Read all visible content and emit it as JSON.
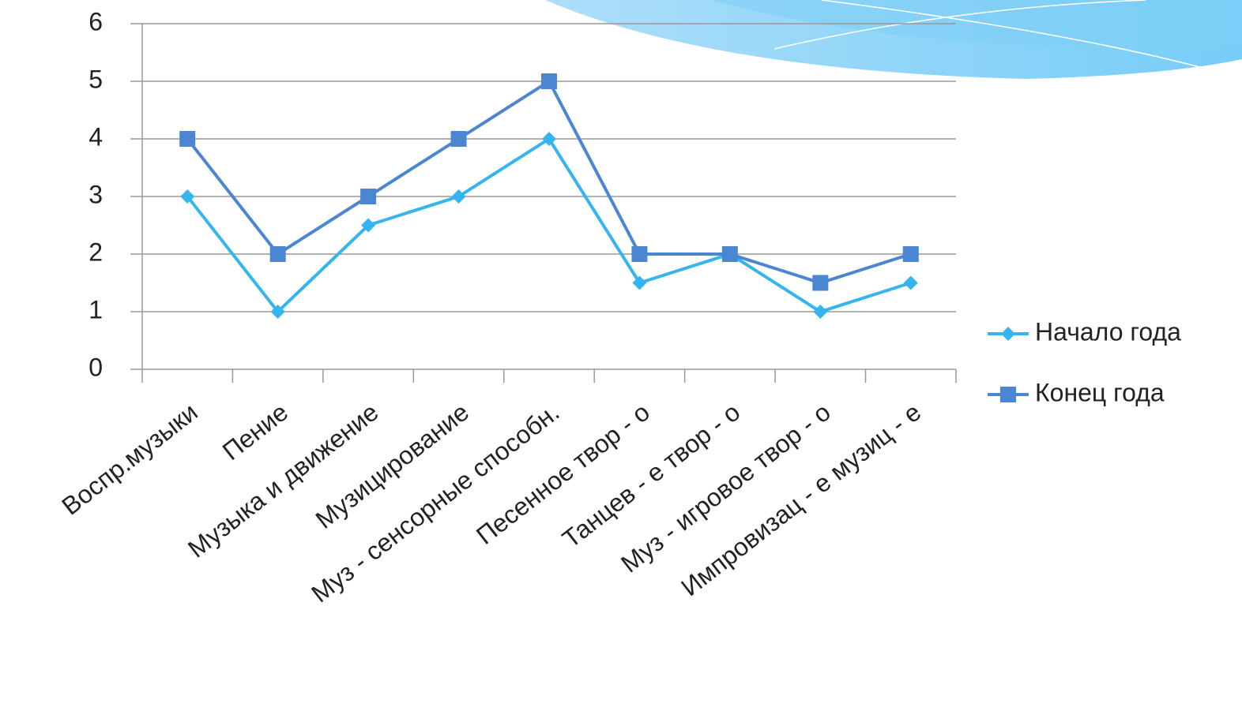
{
  "chart_data": {
    "type": "line",
    "categories": [
      "Воспр.музыки",
      "Пение",
      "Музыка и движение",
      "Музицирование",
      "Муз - сенсорные способн.",
      "Песенное твор - о",
      "Танцев - е твор - о",
      "Муз - игровое твор - о",
      "Импровизац - е музиц - е"
    ],
    "series": [
      {
        "name": "Начало года",
        "color": "#35b5f0",
        "marker": "diamond",
        "values": [
          3,
          1,
          2.5,
          3,
          4,
          1.5,
          2,
          1,
          1.5
        ]
      },
      {
        "name": "Конец года",
        "color": "#4a86d2",
        "marker": "square",
        "values": [
          4,
          2,
          3,
          4,
          5,
          2,
          2,
          1.5,
          2
        ]
      }
    ],
    "ylim": [
      0,
      6
    ],
    "yticks": [
      0,
      1,
      2,
      3,
      4,
      5,
      6
    ],
    "grid": true,
    "legend": "right"
  }
}
